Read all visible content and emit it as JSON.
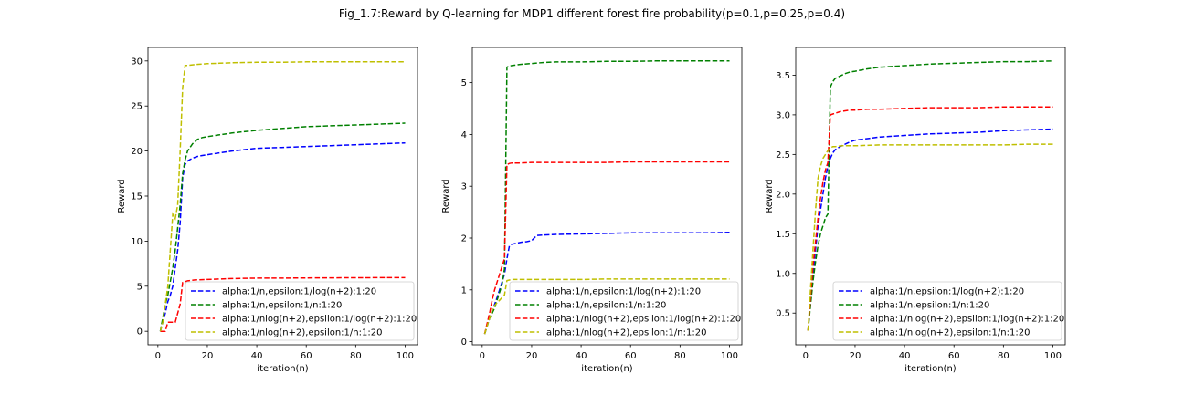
{
  "figure_title": "Fig_1.7:Reward by Q-learning for MDP1 different forest fire probability(p=0.1,p=0.25,p=0.4)",
  "colors": {
    "alpha_n_eps_log": "#0000ff",
    "alpha_n_eps_n": "#008000",
    "alpha_nlog_eps_log": "#ff0000",
    "alpha_nlog_eps_n": "#bfbf00"
  },
  "chart_data": [
    {
      "type": "line",
      "xlabel": "iteration(n)",
      "ylabel": "Reward",
      "xlim": [
        -4,
        105
      ],
      "ylim": [
        -1.5,
        31.5
      ],
      "xticks": [
        0,
        20,
        40,
        60,
        80,
        100
      ],
      "yticks": [
        0,
        5,
        10,
        15,
        20,
        25,
        30
      ],
      "ytick_labels": [
        "0",
        "5",
        "10",
        "15",
        "20",
        "25",
        "30"
      ],
      "legend": "lower-right",
      "line_style": "dashed",
      "series": [
        {
          "name": "alpha:1/n,epsilon:1/log(n+2):1:20",
          "color": "#0000ff",
          "x": [
            1,
            2,
            3,
            4,
            5,
            6,
            7,
            8,
            9,
            10,
            11,
            12,
            14,
            16,
            18,
            20,
            25,
            30,
            40,
            50,
            60,
            70,
            80,
            90,
            100
          ],
          "y": [
            0.0,
            1.0,
            2.0,
            3.3,
            4.0,
            5.0,
            7.0,
            9.0,
            12.0,
            17.0,
            18.5,
            18.9,
            19.2,
            19.4,
            19.5,
            19.6,
            19.8,
            20.0,
            20.3,
            20.4,
            20.5,
            20.6,
            20.7,
            20.8,
            20.9
          ]
        },
        {
          "name": "alpha:1/n,epsilon:1/n:1:20",
          "color": "#008000",
          "x": [
            1,
            2,
            3,
            4,
            5,
            6,
            7,
            8,
            9,
            10,
            11,
            12,
            14,
            16,
            18,
            20,
            25,
            30,
            40,
            50,
            60,
            70,
            80,
            90,
            100
          ],
          "y": [
            0.0,
            1.5,
            3.0,
            4.0,
            5.5,
            7.0,
            9.0,
            11.5,
            14.0,
            17.5,
            19.0,
            20.0,
            20.8,
            21.3,
            21.5,
            21.6,
            21.8,
            22.0,
            22.3,
            22.5,
            22.7,
            22.8,
            22.9,
            23.0,
            23.1
          ]
        },
        {
          "name": "alpha:1/nlog(n+2),epsilon:1/log(n+2):1:20",
          "color": "#ff0000",
          "x": [
            1,
            2,
            3,
            4,
            5,
            6,
            7,
            8,
            9,
            10,
            11,
            12,
            15,
            20,
            25,
            30,
            40,
            50,
            60,
            70,
            80,
            90,
            100
          ],
          "y": [
            0.0,
            0.0,
            0.0,
            1.0,
            1.0,
            1.0,
            1.0,
            2.0,
            3.0,
            5.4,
            5.5,
            5.6,
            5.7,
            5.75,
            5.8,
            5.85,
            5.9,
            5.9,
            5.92,
            5.93,
            5.94,
            5.95,
            5.95
          ]
        },
        {
          "name": "alpha:1/nlog(n+2),epsilon:1/n:1:20",
          "color": "#bfbf00",
          "x": [
            1,
            2,
            3,
            4,
            5,
            6,
            7,
            8,
            9,
            10,
            11,
            12,
            15,
            20,
            25,
            30,
            40,
            50,
            60,
            70,
            80,
            90,
            100
          ],
          "y": [
            0.0,
            1.0,
            3.0,
            5.0,
            9.0,
            13.0,
            12.5,
            14.0,
            20.0,
            27.0,
            29.5,
            29.5,
            29.6,
            29.7,
            29.75,
            29.8,
            29.85,
            29.85,
            29.9,
            29.9,
            29.9,
            29.9,
            29.9
          ]
        }
      ]
    },
    {
      "type": "line",
      "xlabel": "iteration(n)",
      "ylabel": "Reward",
      "xlim": [
        -4,
        105
      ],
      "ylim": [
        -0.06,
        5.68
      ],
      "xticks": [
        0,
        20,
        40,
        60,
        80,
        100
      ],
      "yticks": [
        0,
        1,
        2,
        3,
        4,
        5
      ],
      "ytick_labels": [
        "0",
        "1",
        "2",
        "3",
        "4",
        "5"
      ],
      "legend": "lower-right",
      "line_style": "dashed",
      "series": [
        {
          "name": "alpha:1/n,epsilon:1/log(n+2):1:20",
          "color": "#0000ff",
          "x": [
            1,
            2,
            3,
            4,
            5,
            6,
            7,
            8,
            9,
            10,
            11,
            12,
            14,
            16,
            18,
            20,
            21,
            22,
            25,
            30,
            40,
            50,
            60,
            70,
            80,
            90,
            100
          ],
          "y": [
            0.15,
            0.3,
            0.45,
            0.6,
            0.72,
            0.85,
            1.0,
            1.15,
            1.3,
            1.6,
            1.85,
            1.88,
            1.9,
            1.92,
            1.93,
            1.95,
            2.0,
            2.05,
            2.06,
            2.07,
            2.08,
            2.09,
            2.1,
            2.1,
            2.1,
            2.1,
            2.11
          ]
        },
        {
          "name": "alpha:1/n,epsilon:1/n:1:20",
          "color": "#008000",
          "x": [
            1,
            2,
            3,
            4,
            5,
            6,
            7,
            8,
            9,
            10,
            11,
            12,
            15,
            20,
            25,
            30,
            40,
            50,
            60,
            70,
            80,
            90,
            100
          ],
          "y": [
            0.15,
            0.3,
            0.45,
            0.55,
            0.65,
            0.8,
            0.95,
            1.1,
            1.4,
            5.3,
            5.32,
            5.33,
            5.35,
            5.37,
            5.39,
            5.4,
            5.4,
            5.41,
            5.41,
            5.42,
            5.42,
            5.42,
            5.42
          ]
        },
        {
          "name": "alpha:1/nlog(n+2),epsilon:1/log(n+2):1:20",
          "color": "#ff0000",
          "x": [
            1,
            2,
            3,
            4,
            5,
            6,
            7,
            8,
            9,
            10,
            11,
            12,
            15,
            20,
            30,
            40,
            50,
            60,
            70,
            80,
            90,
            100
          ],
          "y": [
            0.15,
            0.35,
            0.55,
            0.8,
            1.0,
            1.15,
            1.3,
            1.45,
            1.6,
            3.42,
            3.44,
            3.45,
            3.45,
            3.46,
            3.46,
            3.46,
            3.46,
            3.47,
            3.47,
            3.47,
            3.47,
            3.47
          ]
        },
        {
          "name": "alpha:1/nlog(n+2),epsilon:1/n:1:20",
          "color": "#bfbf00",
          "x": [
            1,
            2,
            3,
            4,
            5,
            6,
            7,
            8,
            9,
            10,
            11,
            12,
            15,
            20,
            30,
            40,
            50,
            60,
            70,
            80,
            90,
            100
          ],
          "y": [
            0.15,
            0.3,
            0.45,
            0.6,
            0.7,
            0.75,
            0.8,
            0.85,
            0.9,
            1.18,
            1.19,
            1.2,
            1.2,
            1.2,
            1.2,
            1.2,
            1.21,
            1.21,
            1.21,
            1.21,
            1.21,
            1.21
          ]
        }
      ]
    },
    {
      "type": "line",
      "xlabel": "iteration(n)",
      "ylabel": "Reward",
      "xlim": [
        -4,
        105
      ],
      "ylim": [
        0.1,
        3.85
      ],
      "xticks": [
        0,
        20,
        40,
        60,
        80,
        100
      ],
      "yticks": [
        0.5,
        1.0,
        1.5,
        2.0,
        2.5,
        3.0,
        3.5
      ],
      "ytick_labels": [
        "0.5",
        "1.0",
        "1.5",
        "2.0",
        "2.5",
        "3.0",
        "3.5"
      ],
      "legend": "lower-right",
      "line_style": "dashed",
      "series": [
        {
          "name": "alpha:1/n,epsilon:1/log(n+2):1:20",
          "color": "#0000ff",
          "x": [
            1,
            2,
            3,
            4,
            5,
            6,
            7,
            8,
            9,
            10,
            11,
            12,
            14,
            16,
            18,
            20,
            25,
            30,
            40,
            50,
            60,
            70,
            80,
            90,
            100
          ],
          "y": [
            0.28,
            0.7,
            1.0,
            1.3,
            1.6,
            1.8,
            2.0,
            2.2,
            2.35,
            2.45,
            2.52,
            2.56,
            2.6,
            2.63,
            2.66,
            2.68,
            2.7,
            2.72,
            2.74,
            2.76,
            2.77,
            2.78,
            2.8,
            2.81,
            2.82
          ]
        },
        {
          "name": "alpha:1/n,epsilon:1/n:1:20",
          "color": "#008000",
          "x": [
            1,
            2,
            3,
            4,
            5,
            6,
            7,
            8,
            9,
            10,
            11,
            12,
            14,
            16,
            18,
            20,
            25,
            30,
            40,
            50,
            60,
            70,
            80,
            90,
            100
          ],
          "y": [
            0.28,
            0.6,
            0.9,
            1.15,
            1.35,
            1.5,
            1.6,
            1.7,
            1.75,
            3.35,
            3.42,
            3.46,
            3.49,
            3.52,
            3.54,
            3.55,
            3.58,
            3.6,
            3.62,
            3.64,
            3.65,
            3.66,
            3.67,
            3.67,
            3.68
          ]
        },
        {
          "name": "alpha:1/nlog(n+2),epsilon:1/log(n+2):1:20",
          "color": "#ff0000",
          "x": [
            1,
            2,
            3,
            4,
            5,
            6,
            7,
            8,
            9,
            10,
            11,
            12,
            14,
            16,
            18,
            20,
            25,
            30,
            40,
            50,
            60,
            70,
            80,
            90,
            100
          ],
          "y": [
            0.28,
            0.7,
            1.1,
            1.4,
            1.7,
            1.95,
            2.15,
            2.3,
            2.4,
            3.0,
            3.01,
            3.02,
            3.04,
            3.05,
            3.06,
            3.06,
            3.07,
            3.07,
            3.08,
            3.09,
            3.09,
            3.09,
            3.1,
            3.1,
            3.1
          ]
        },
        {
          "name": "alpha:1/nlog(n+2),epsilon:1/n:1:20",
          "color": "#bfbf00",
          "x": [
            1,
            2,
            3,
            4,
            5,
            6,
            7,
            8,
            9,
            10,
            11,
            12,
            15,
            20,
            30,
            40,
            50,
            60,
            70,
            80,
            90,
            100
          ],
          "y": [
            0.28,
            0.8,
            1.3,
            1.8,
            2.2,
            2.35,
            2.45,
            2.5,
            2.55,
            2.58,
            2.6,
            2.6,
            2.61,
            2.61,
            2.62,
            2.62,
            2.62,
            2.62,
            2.62,
            2.62,
            2.63,
            2.63
          ]
        }
      ]
    }
  ]
}
